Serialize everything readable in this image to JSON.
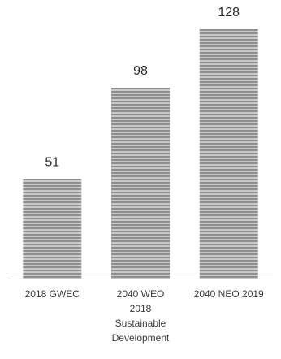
{
  "chart_data": {
    "type": "bar",
    "categories": [
      [
        "2018 GWEC"
      ],
      [
        "2040 WEO",
        "2018",
        "Sustainable",
        "Development"
      ],
      [
        "2040 NEO 2019"
      ]
    ],
    "values": [
      51,
      98,
      128
    ],
    "data_labels": [
      "51",
      "98",
      "128"
    ],
    "title": "",
    "xlabel": "",
    "ylabel": "",
    "ylim": [
      0,
      128
    ],
    "grid": false,
    "legend": "none",
    "bar_style": "horizontal-stripes",
    "colors": {
      "bar_stripe_dark": "#8f8f8f",
      "bar_stripe_light": "#c9c9c9",
      "axis": "#bdbdbd",
      "text": "#2b2b2b"
    }
  }
}
